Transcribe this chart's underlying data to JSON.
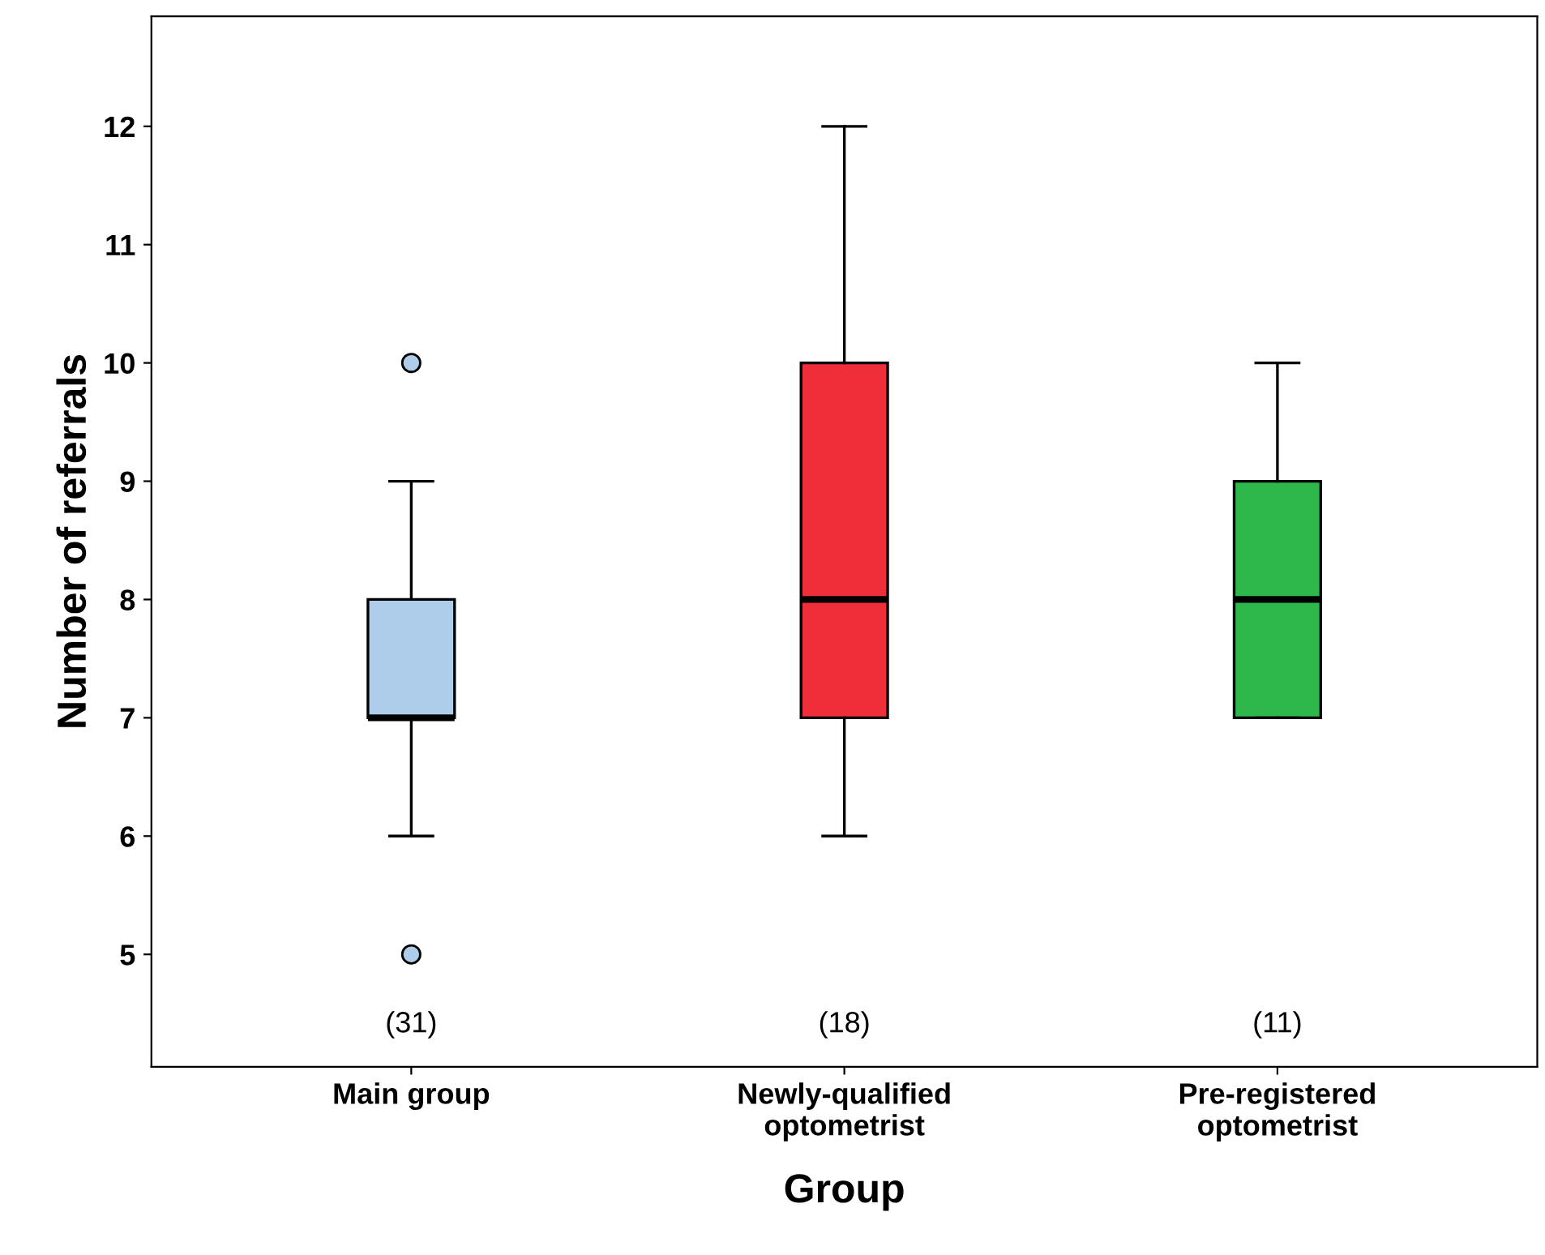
{
  "chart_data": {
    "type": "box",
    "xlabel": "Group",
    "ylabel": "Number of referrals",
    "categories": [
      "Main group",
      "Newly-qualified\noptometrist",
      "Pre-registered\noptometrist"
    ],
    "boxes": [
      {
        "low": 6,
        "q1": 7,
        "median": 7,
        "q3": 8,
        "high": 9,
        "outliers": [
          5,
          10
        ]
      },
      {
        "low": 6,
        "q1": 7,
        "median": 8,
        "q3": 10,
        "high": 12
      },
      {
        "low": 7,
        "q1": 7,
        "median": 8,
        "q3": 9,
        "high": 10
      }
    ],
    "colors": [
      "#aecdeb",
      "#ef2e39",
      "#2eb84b"
    ],
    "ylim": [
      4.05,
      12.93
    ],
    "yticks": [
      5,
      6,
      7,
      8,
      9,
      10,
      11,
      12
    ],
    "grid": false,
    "annotations": [
      "(31)",
      "(18)",
      "(11)"
    ]
  }
}
